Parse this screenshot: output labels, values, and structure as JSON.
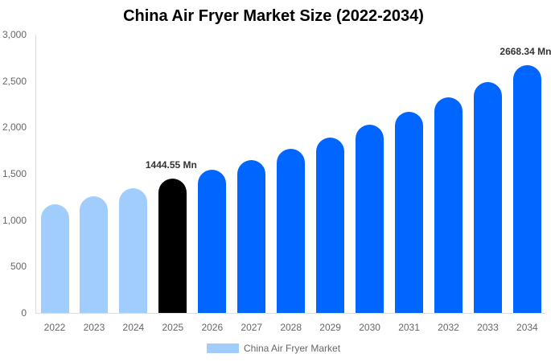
{
  "chart_data": {
    "type": "bar",
    "title": "China Air Fryer Market Size (2022-2034)",
    "xlabel": "",
    "ylabel": "",
    "ylim": [
      0,
      3000
    ],
    "yticks": [
      "0",
      "500",
      "1,000",
      "1,500",
      "2,000",
      "2,500",
      "3,000"
    ],
    "grid": false,
    "legend_position": "bottom",
    "categories": [
      "2022",
      "2023",
      "2024",
      "2025",
      "2026",
      "2027",
      "2028",
      "2029",
      "2030",
      "2031",
      "2032",
      "2033",
      "2034"
    ],
    "series": [
      {
        "name": "China Air Fryer Market",
        "values": [
          1171,
          1258,
          1344,
          1444.55,
          1544,
          1648,
          1769,
          1891,
          2030,
          2168,
          2324,
          2489,
          2668.34
        ],
        "colors": [
          "#a1cdfd",
          "#a1cdfd",
          "#a1cdfd",
          "#000000",
          "#0066ff",
          "#0066ff",
          "#0066ff",
          "#0066ff",
          "#0066ff",
          "#0066ff",
          "#0066ff",
          "#0066ff",
          "#0066ff"
        ]
      }
    ],
    "annotations": [
      {
        "category": "2025",
        "text": "1444.55 Mn"
      },
      {
        "category": "2034",
        "text": "2668.34 Mn"
      }
    ]
  },
  "colors": {
    "historical": "#a1cdfd",
    "base_year": "#000000",
    "forecast": "#0066ff"
  },
  "legend": {
    "label": "China Air Fryer Market"
  }
}
